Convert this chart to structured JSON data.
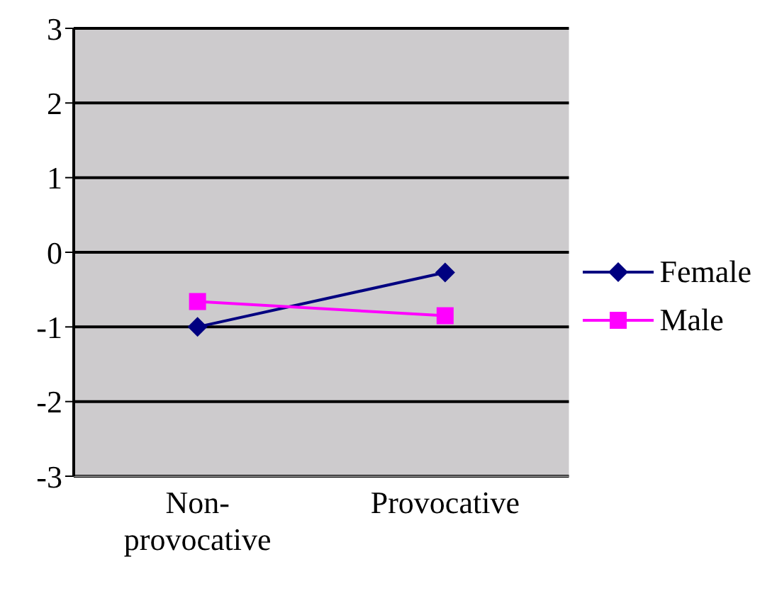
{
  "chart_data": {
    "type": "line",
    "categories": [
      "Non-provocative",
      "Provocative"
    ],
    "series": [
      {
        "name": "Female",
        "color": "#000080",
        "marker": "diamond",
        "values": [
          -1,
          -0.27
        ]
      },
      {
        "name": "Male",
        "color": "#ff00ff",
        "marker": "square",
        "values": [
          -0.66,
          -0.85
        ]
      }
    ],
    "ylim": [
      -3,
      3
    ],
    "yticks": [
      -3,
      -2,
      -1,
      0,
      1,
      2,
      3
    ],
    "grid": "y",
    "legend": "right",
    "line_style": "solid"
  }
}
